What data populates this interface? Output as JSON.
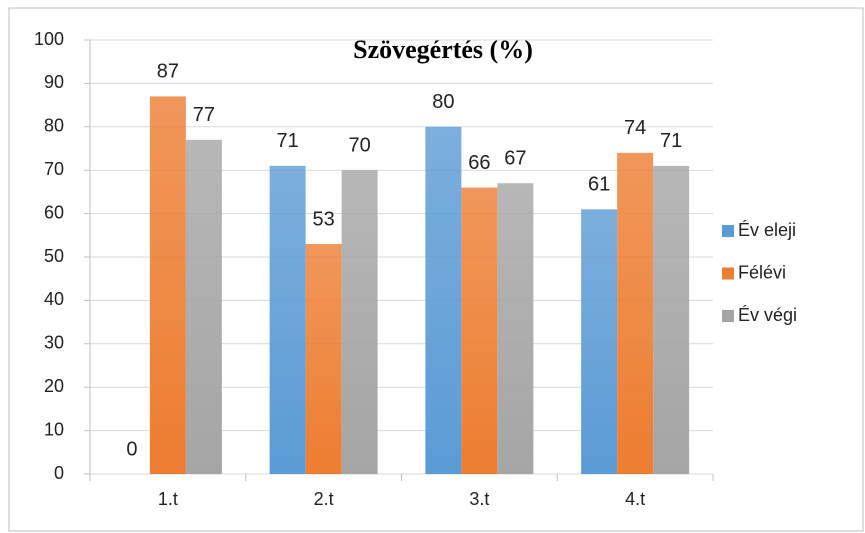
{
  "chart_data": {
    "type": "bar",
    "title": "Szövegértés (%)",
    "categories": [
      "1.t",
      "2.t",
      "3.t",
      "4.t"
    ],
    "series": [
      {
        "name": "Év eleji",
        "color": "#5b9bd5",
        "values": [
          0,
          71,
          80,
          61
        ]
      },
      {
        "name": "Félévi",
        "color": "#ed7d31",
        "values": [
          87,
          53,
          66,
          74
        ]
      },
      {
        "name": "Év végi",
        "color": "#a5a5a5",
        "values": [
          77,
          70,
          67,
          71
        ]
      }
    ],
    "ylim": [
      0,
      100
    ],
    "yticks": [
      0,
      10,
      20,
      30,
      40,
      50,
      60,
      70,
      80,
      90,
      100
    ],
    "grid": true,
    "legend": "right"
  }
}
